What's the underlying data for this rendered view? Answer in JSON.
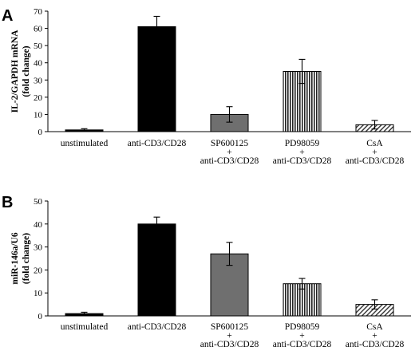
{
  "chart_data": [
    {
      "type": "bar",
      "panel_label": "A",
      "ylabel": "IL-2/GAPDH mRNA\n(fold change)",
      "ylim": [
        0,
        70
      ],
      "yticks": [
        0,
        10,
        20,
        30,
        40,
        50,
        60,
        70
      ],
      "categories": [
        [
          "unstimulated"
        ],
        [
          "anti-CD3/CD28"
        ],
        [
          "SP600125",
          "+",
          "anti-CD3/CD28"
        ],
        [
          "PD98059",
          "+",
          "anti-CD3/CD28"
        ],
        [
          "CsA",
          "+",
          "anti-CD3/CD28"
        ]
      ],
      "values": [
        1,
        61,
        10,
        35,
        4
      ],
      "errors": [
        0.7,
        6,
        4.5,
        7,
        2.5
      ],
      "bar_styles": [
        "solid-black",
        "solid-black",
        "gray",
        "vertical-hatch",
        "diagonal-hatch"
      ],
      "grid": false
    },
    {
      "type": "bar",
      "panel_label": "B",
      "ylabel": "miR-146a/U6\n(fold change)",
      "ylim": [
        0,
        50
      ],
      "yticks": [
        0,
        10,
        20,
        30,
        40,
        50
      ],
      "categories": [
        [
          "unstimulated"
        ],
        [
          "anti-CD3/CD28"
        ],
        [
          "SP600125",
          "+",
          "anti-CD3/CD28"
        ],
        [
          "PD98059",
          "+",
          "anti-CD3/CD28"
        ],
        [
          "CsA",
          "+",
          "anti-CD3/CD28"
        ]
      ],
      "values": [
        1,
        40,
        27,
        14,
        5
      ],
      "errors": [
        0.6,
        3,
        5,
        2.3,
        2
      ],
      "bar_styles": [
        "solid-black",
        "solid-black",
        "gray",
        "vertical-hatch",
        "diagonal-hatch"
      ],
      "grid": false
    }
  ]
}
